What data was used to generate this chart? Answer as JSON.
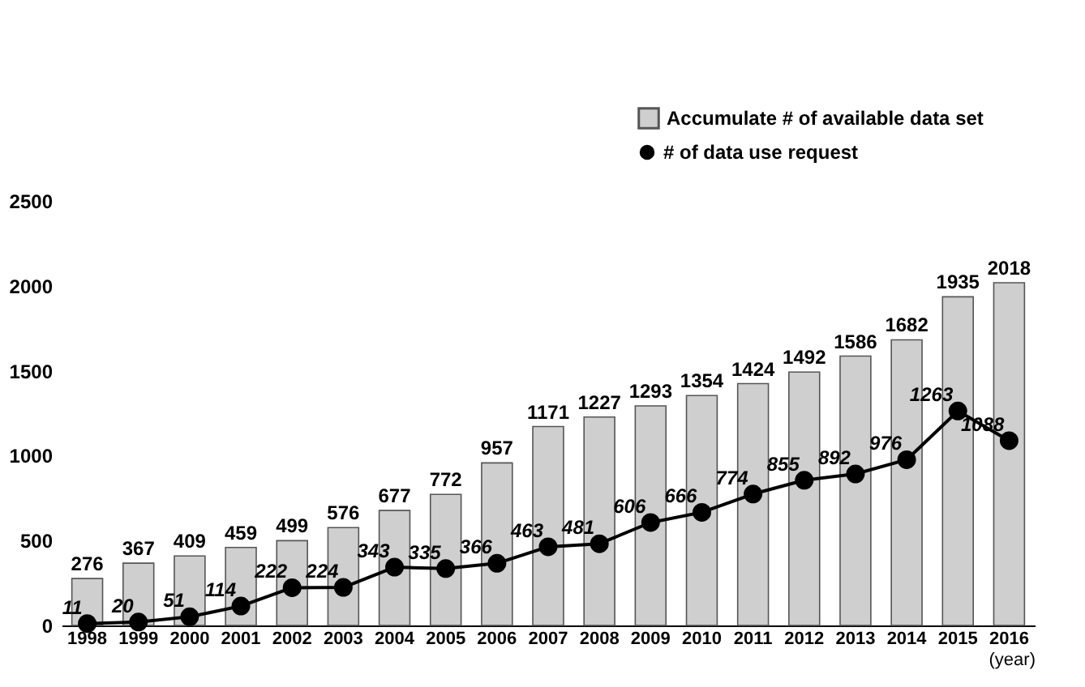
{
  "chart_data": {
    "type": "bar",
    "xlabel": "(year)",
    "categories": [
      "1998",
      "1999",
      "2000",
      "2001",
      "2002",
      "2003",
      "2004",
      "2005",
      "2006",
      "2007",
      "2008",
      "2009",
      "2010",
      "2011",
      "2012",
      "2013",
      "2014",
      "2015",
      "2016"
    ],
    "series": [
      {
        "name": "Accumulate # of available data set",
        "color": "#cfcfcf",
        "values": [
          276,
          367,
          409,
          459,
          499,
          576,
          677,
          772,
          957,
          1171,
          1227,
          1293,
          1354,
          1424,
          1492,
          1586,
          1682,
          1935,
          2018
        ]
      },
      {
        "name": "# of data use request",
        "type": "line",
        "color": "#000000",
        "values": [
          11,
          20,
          51,
          114,
          222,
          224,
          343,
          335,
          366,
          463,
          481,
          606,
          666,
          774,
          855,
          892,
          976,
          1263,
          1088
        ]
      }
    ],
    "ylim": [
      0,
      2500
    ],
    "yticks": [
      0,
      500,
      1000,
      1500,
      2000,
      2500
    ],
    "grid": false,
    "legend": "top right",
    "marker": "circle",
    "data_labels": true
  }
}
